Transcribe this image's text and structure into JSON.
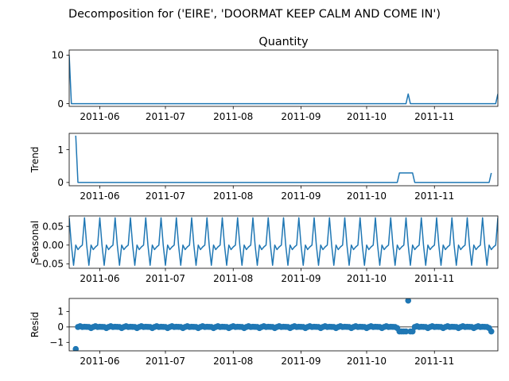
{
  "figure": {
    "suptitle": "Decomposition for ('EIRE', 'DOORMAT KEEP CALM AND COME IN')"
  },
  "colors": {
    "line": "#1f77b4",
    "marker": "#1f77b4",
    "axis": "#000000"
  },
  "chart_data": [
    {
      "type": "line",
      "title": "Quantity",
      "ylabel": "",
      "x_range": [
        "2011-05-18",
        "2011-11-30"
      ],
      "x_ticks": [
        "2011-06",
        "2011-07",
        "2011-08",
        "2011-09",
        "2011-10",
        "2011-11"
      ],
      "ylim": [
        -0.55,
        11.05
      ],
      "y_ticks": [
        {
          "v": 0,
          "label": "0"
        },
        {
          "v": 10,
          "label": "10"
        }
      ],
      "grid": false,
      "series": [
        {
          "points": [
            [
              "2011-05-18",
              10
            ],
            [
              "2011-05-19",
              0
            ],
            [
              "2011-10-19",
              0
            ],
            [
              "2011-10-20",
              2
            ],
            [
              "2011-10-21",
              0
            ],
            [
              "2011-11-29",
              0
            ],
            [
              "2011-11-30",
              2
            ]
          ]
        }
      ]
    },
    {
      "type": "line",
      "title": "",
      "ylabel": "Trend",
      "x_range": [
        "2011-05-18",
        "2011-11-30"
      ],
      "x_ticks": [
        "2011-06",
        "2011-07",
        "2011-08",
        "2011-09",
        "2011-10",
        "2011-11"
      ],
      "ylim": [
        -0.1,
        1.5
      ],
      "y_ticks": [
        {
          "v": 0,
          "label": "0"
        },
        {
          "v": 1,
          "label": "1"
        }
      ],
      "grid": false,
      "series": [
        {
          "points": [
            [
              "2011-05-21",
              1.43
            ],
            [
              "2011-05-22",
              0
            ],
            [
              "2011-10-15",
              0
            ],
            [
              "2011-10-16",
              0.29
            ],
            [
              "2011-10-22",
              0.29
            ],
            [
              "2011-10-23",
              0
            ],
            [
              "2011-11-26",
              0
            ],
            [
              "2011-11-27",
              0.29
            ]
          ]
        }
      ]
    },
    {
      "type": "line",
      "title": "",
      "ylabel": "Seasonal",
      "x_range": [
        "2011-05-18",
        "2011-11-30"
      ],
      "x_ticks": [
        "2011-06",
        "2011-07",
        "2011-08",
        "2011-09",
        "2011-10",
        "2011-11"
      ],
      "ylim": [
        -0.062,
        0.078
      ],
      "y_ticks": [
        {
          "v": 0.05,
          "label": "0.05"
        },
        {
          "v": 0,
          "label": "0.00"
        },
        {
          "v": -0.05,
          "label": "−0.05"
        }
      ],
      "grid": false,
      "seasonal_period_days": 7,
      "seasonal_pattern": [
        0.073,
        0.0,
        -0.054,
        0.0,
        -0.012,
        -0.005,
        0.0
      ]
    },
    {
      "type": "scatter",
      "title": "",
      "ylabel": "Resid",
      "x_range": [
        "2011-05-18",
        "2011-11-30"
      ],
      "x_ticks": [
        "2011-06",
        "2011-07",
        "2011-08",
        "2011-09",
        "2011-10",
        "2011-11"
      ],
      "ylim": [
        -1.55,
        1.85
      ],
      "y_ticks": [
        {
          "v": 1,
          "label": "1"
        },
        {
          "v": 0,
          "label": "0"
        },
        {
          "v": -1,
          "label": "−1"
        }
      ],
      "grid": false,
      "baseline": 0,
      "start": "2011-05-21",
      "end": "2011-11-27",
      "pattern": [
        -0.07,
        0.0,
        0.05,
        0.0,
        0.01,
        0.005,
        0.0
      ],
      "overrides": [
        [
          "2011-05-21",
          -1.43
        ],
        [
          "2011-10-16",
          -0.29
        ],
        [
          "2011-10-17",
          -0.29
        ],
        [
          "2011-10-18",
          -0.29
        ],
        [
          "2011-10-19",
          -0.29
        ],
        [
          "2011-10-20",
          1.71
        ],
        [
          "2011-10-21",
          -0.29
        ],
        [
          "2011-10-22",
          -0.29
        ],
        [
          "2011-11-27",
          -0.29
        ]
      ]
    }
  ]
}
